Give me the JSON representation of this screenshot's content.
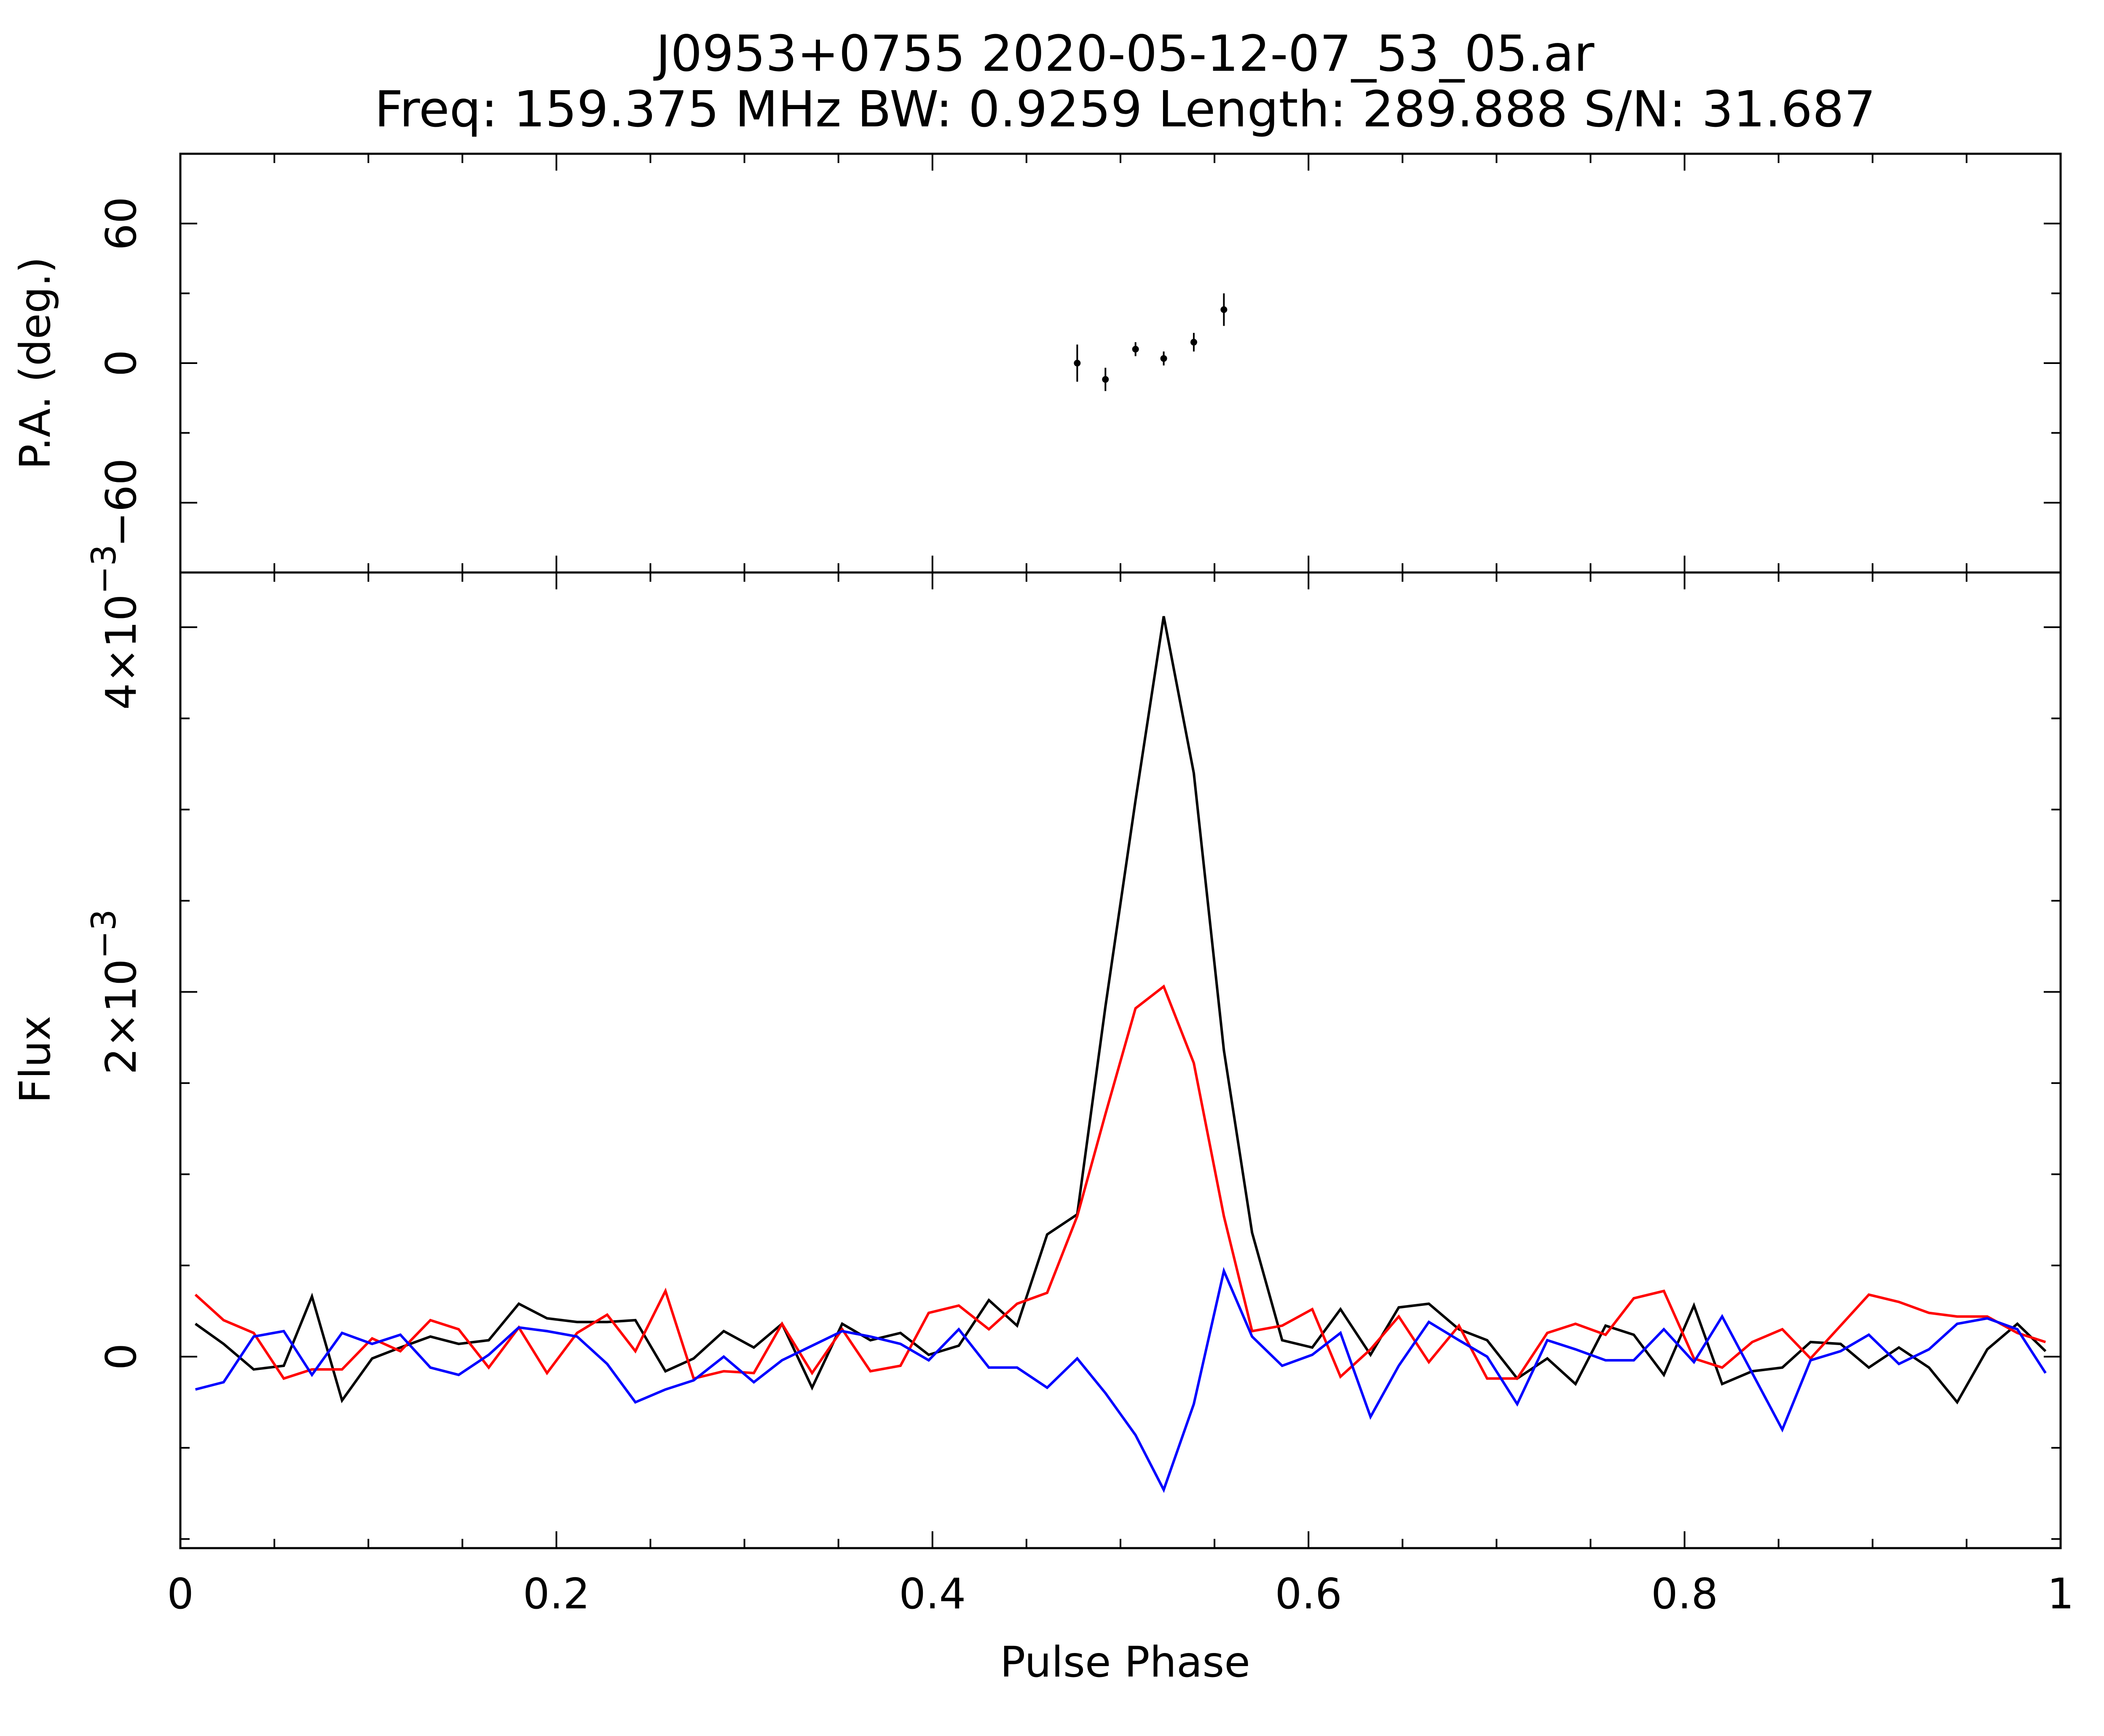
{
  "chart_data": [
    {
      "type": "scatter",
      "panel": "top",
      "title": "J0953+0755 2020-05-12-07_53_05.ar",
      "subtitle": "Freq: 159.375 MHz BW: 0.9259 Length: 289.888 S/N: 31.687",
      "ylabel": "P.A. (deg.)",
      "xlim": [
        0,
        1
      ],
      "ylim": [
        -90,
        90
      ],
      "yticks": [
        -60,
        0,
        60
      ],
      "ytick_labels": [
        "−60",
        "0",
        "60"
      ],
      "grid": false,
      "error_bars": true,
      "series": [
        {
          "color": "#000000",
          "points": [
            {
              "x": 0.477,
              "y": 0,
              "err": 8
            },
            {
              "x": 0.492,
              "y": -7,
              "err": 5
            },
            {
              "x": 0.508,
              "y": 6,
              "err": 3
            },
            {
              "x": 0.523,
              "y": 2,
              "err": 3
            },
            {
              "x": 0.539,
              "y": 9,
              "err": 4
            },
            {
              "x": 0.555,
              "y": 23,
              "err": 7
            }
          ]
        }
      ]
    },
    {
      "type": "line",
      "panel": "bottom",
      "xlabel": "Pulse Phase",
      "ylabel": "Flux",
      "xlim": [
        0,
        1
      ],
      "ylim": [
        -0.00105,
        0.0043
      ],
      "xticks": [
        0,
        0.2,
        0.4,
        0.6,
        0.8,
        1
      ],
      "xtick_labels": [
        "0",
        "0.2",
        "0.4",
        "0.6",
        "0.8",
        "1"
      ],
      "yticks": [
        0,
        0.002,
        0.004
      ],
      "ytick_labels": [
        {
          "mantissa": "0",
          "exponent": ""
        },
        {
          "mantissa": "2×10",
          "exponent": "−3"
        },
        {
          "mantissa": "4×10",
          "exponent": "−3"
        }
      ],
      "grid": false,
      "x": [
        0.008,
        0.023,
        0.039,
        0.055,
        0.07,
        0.086,
        0.102,
        0.117,
        0.133,
        0.148,
        0.164,
        0.18,
        0.195,
        0.211,
        0.227,
        0.242,
        0.258,
        0.273,
        0.289,
        0.305,
        0.32,
        0.336,
        0.352,
        0.367,
        0.383,
        0.398,
        0.414,
        0.43,
        0.445,
        0.461,
        0.477,
        0.492,
        0.508,
        0.523,
        0.539,
        0.555,
        0.57,
        0.586,
        0.602,
        0.617,
        0.633,
        0.648,
        0.664,
        0.68,
        0.695,
        0.711,
        0.727,
        0.742,
        0.758,
        0.773,
        0.789,
        0.805,
        0.82,
        0.836,
        0.852,
        0.867,
        0.883,
        0.898,
        0.914,
        0.93,
        0.945,
        0.961,
        0.977,
        0.992
      ],
      "series": [
        {
          "color": "#000000",
          "values": [
            0.00018,
            7e-05,
            -7e-05,
            -5e-05,
            0.00033,
            -0.00024,
            -1e-05,
            5e-05,
            0.00011,
            7e-05,
            9e-05,
            0.00029,
            0.00021,
            0.00019,
            0.00019,
            0.0002,
            -8e-05,
            -1e-05,
            0.00014,
            5e-05,
            0.00018,
            -0.00017,
            0.00018,
            9e-05,
            0.00013,
            1e-05,
            6e-05,
            0.00031,
            0.00017,
            0.00067,
            0.00078,
            0.00192,
            0.00305,
            0.00406,
            0.0032,
            0.00168,
            0.00068,
            9e-05,
            5e-05,
            0.00026,
            1e-05,
            0.00027,
            0.00029,
            0.00015,
            9e-05,
            -0.00012,
            -1e-05,
            -0.00015,
            0.00017,
            0.00012,
            -0.0001,
            0.00028,
            -0.00015,
            -8e-05,
            -6e-05,
            8e-05,
            7e-05,
            -6e-05,
            5e-05,
            -6e-05,
            -0.00025,
            4e-05,
            0.00018,
            3e-05
          ]
        },
        {
          "color": "#ff0000",
          "values": [
            0.00034,
            0.0002,
            0.00013,
            -0.00012,
            -7e-05,
            -7e-05,
            0.0001,
            3e-05,
            0.0002,
            0.00015,
            -6e-05,
            0.00016,
            -9e-05,
            0.00013,
            0.00023,
            3e-05,
            0.00036,
            -0.00012,
            -8e-05,
            -9e-05,
            0.00018,
            -9e-05,
            0.00015,
            -8e-05,
            -5e-05,
            0.00024,
            0.00028,
            0.00015,
            0.00029,
            0.00035,
            0.00077,
            0.00133,
            0.00191,
            0.00203,
            0.00161,
            0.00077,
            0.00014,
            0.00017,
            0.00026,
            -0.00011,
            4e-05,
            0.00022,
            -3e-05,
            0.00017,
            -0.00012,
            -0.00012,
            0.00013,
            0.00018,
            0.00012,
            0.00032,
            0.00036,
            -1e-05,
            -6e-05,
            8e-05,
            0.00015,
            -1e-05,
            0.00017,
            0.00034,
            0.0003,
            0.00024,
            0.00022,
            0.00022,
            0.00013,
            8e-05
          ]
        },
        {
          "color": "#0000ff",
          "values": [
            -0.00018,
            -0.00014,
            0.00011,
            0.00014,
            -0.0001,
            0.00013,
            7e-05,
            0.00012,
            -6e-05,
            -0.0001,
            1e-05,
            0.00016,
            0.00014,
            0.00011,
            -4e-05,
            -0.00025,
            -0.00018,
            -0.00013,
            0.0,
            -0.00014,
            -2e-05,
            6e-05,
            0.00014,
            0.00011,
            7e-05,
            -2e-05,
            0.00015,
            -6e-05,
            -6e-05,
            -0.00017,
            -1e-05,
            -0.0002,
            -0.00043,
            -0.00073,
            -0.00026,
            0.00047,
            0.00011,
            -5e-05,
            1e-05,
            0.00013,
            -0.00033,
            -5e-05,
            0.00019,
            9e-05,
            0.0,
            -0.00026,
            9e-05,
            4e-05,
            -2e-05,
            -2e-05,
            0.00015,
            -3e-05,
            0.00022,
            -9e-05,
            -0.0004,
            -2e-05,
            3e-05,
            0.00012,
            -4e-05,
            4e-05,
            0.00018,
            0.00021,
            0.00015,
            -9e-05
          ]
        }
      ]
    }
  ]
}
